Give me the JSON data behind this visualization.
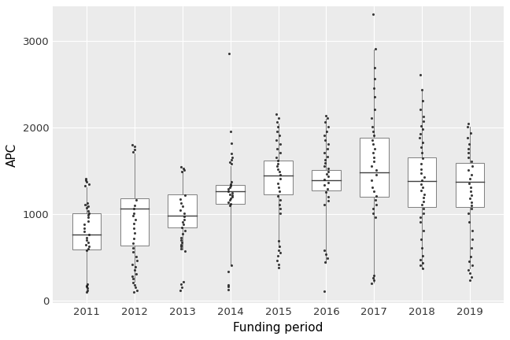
{
  "years": [
    2011,
    2012,
    2013,
    2014,
    2015,
    2016,
    2017,
    2018,
    2019
  ],
  "box_stats": {
    "2011": {
      "q1": 590,
      "median": 760,
      "q3": 1010,
      "whislo": 180,
      "whishi": 1310
    },
    "2012": {
      "q1": 640,
      "median": 1060,
      "q3": 1185,
      "whislo": 220,
      "whishi": 1700
    },
    "2013": {
      "q1": 845,
      "median": 980,
      "q3": 1230,
      "whislo": 590,
      "whishi": 1490
    },
    "2014": {
      "q1": 1115,
      "median": 1260,
      "q3": 1340,
      "whislo": 420,
      "whishi": 1560
    },
    "2015": {
      "q1": 1230,
      "median": 1450,
      "q3": 1620,
      "whislo": 620,
      "whishi": 2050
    },
    "2016": {
      "q1": 1270,
      "median": 1390,
      "q3": 1510,
      "whislo": 440,
      "whishi": 2100
    },
    "2017": {
      "q1": 1200,
      "median": 1480,
      "q3": 1880,
      "whislo": 210,
      "whishi": 2900
    },
    "2018": {
      "q1": 1080,
      "median": 1380,
      "q3": 1660,
      "whislo": 380,
      "whishi": 2420
    },
    "2019": {
      "q1": 1080,
      "median": 1375,
      "q3": 1590,
      "whislo": 370,
      "whishi": 2010
    }
  },
  "outliers": {
    "2011": [
      100,
      130,
      155,
      175,
      190,
      1340,
      1370,
      1395,
      1410
    ],
    "2012": [
      100,
      130,
      185,
      215,
      250,
      270,
      310,
      340,
      390,
      420,
      450,
      490,
      530,
      1710,
      1740,
      1760,
      1790
    ],
    "2013": [
      120,
      160,
      200,
      230,
      1500,
      1520,
      1540
    ],
    "2014": [
      130,
      165,
      185,
      340,
      400,
      1580,
      1600,
      1640,
      1700,
      1800,
      1960,
      2850
    ],
    "2015": [
      380,
      420,
      460,
      510,
      550,
      580,
      2060,
      2100,
      2150
    ],
    "2016": [
      105,
      440,
      480,
      2110,
      2130
    ],
    "2017": [
      200,
      235,
      265,
      295,
      2910,
      2950,
      3300
    ],
    "2018": [
      370,
      400,
      430,
      2430,
      2600
    ],
    "2019": [
      230,
      260,
      300,
      350,
      2020,
      2040
    ]
  },
  "jitter_outliers": {
    "2011": [
      100,
      120,
      145,
      160,
      175,
      190,
      580,
      600,
      630,
      650,
      670,
      700,
      730,
      760,
      800,
      840,
      880,
      920,
      960,
      990,
      1010,
      1040,
      1070,
      1090,
      1110,
      1130,
      1330,
      1350,
      1370,
      1395,
      1410
    ],
    "2012": [
      100,
      120,
      155,
      185,
      210,
      250,
      280,
      310,
      350,
      390,
      420,
      460,
      510,
      560,
      610,
      660,
      720,
      780,
      840,
      890,
      940,
      980,
      1010,
      1060,
      1100,
      1160,
      1720,
      1750,
      1780,
      1800
    ],
    "2013": [
      120,
      155,
      190,
      220,
      570,
      600,
      625,
      650,
      675,
      700,
      730,
      770,
      810,
      850,
      880,
      910,
      940,
      970,
      1010,
      1050,
      1090,
      1130,
      1170,
      1220,
      1490,
      1510,
      1530,
      1550
    ],
    "2014": [
      130,
      160,
      180,
      340,
      405,
      1100,
      1120,
      1140,
      1160,
      1180,
      1200,
      1215,
      1230,
      1245,
      1265,
      1290,
      1310,
      1330,
      1350,
      1370,
      1580,
      1600,
      1630,
      1660,
      1700,
      1820,
      1960,
      2860
    ],
    "2015": [
      380,
      420,
      465,
      515,
      555,
      585,
      625,
      690,
      1010,
      1060,
      1110,
      1160,
      1210,
      1260,
      1310,
      1360,
      1410,
      1460,
      1490,
      1520,
      1555,
      1585,
      1620,
      1660,
      1710,
      1760,
      1810,
      1860,
      1910,
      1960,
      2010,
      2065,
      2110,
      2155
    ],
    "2016": [
      105,
      445,
      490,
      535,
      580,
      1110,
      1155,
      1205,
      1255,
      1295,
      1335,
      1365,
      1405,
      1435,
      1465,
      1490,
      1525,
      1555,
      1595,
      1625,
      1665,
      1710,
      1755,
      1810,
      1860,
      1910,
      1960,
      2010,
      2065,
      2115,
      2135
    ],
    "2017": [
      200,
      235,
      265,
      295,
      960,
      1010,
      1060,
      1110,
      1160,
      1210,
      1260,
      1310,
      1390,
      1460,
      1510,
      1560,
      1610,
      1660,
      1710,
      1760,
      1810,
      1860,
      1910,
      1960,
      2010,
      2110,
      2210,
      2360,
      2460,
      2565,
      2690,
      2915,
      3310
    ],
    "2018": [
      375,
      405,
      435,
      475,
      515,
      610,
      710,
      810,
      910,
      960,
      1010,
      1060,
      1110,
      1150,
      1190,
      1230,
      1270,
      1310,
      1350,
      1390,
      1430,
      1470,
      1520,
      1580,
      1650,
      1710,
      1770,
      1830,
      1880,
      1930,
      1980,
      2020,
      2070,
      2130,
      2210,
      2310,
      2435,
      2610
    ],
    "2019": [
      235,
      275,
      315,
      355,
      405,
      455,
      510,
      610,
      710,
      810,
      910,
      1010,
      1060,
      1100,
      1140,
      1180,
      1220,
      1260,
      1310,
      1360,
      1410,
      1460,
      1510,
      1560,
      1610,
      1660,
      1710,
      1760,
      1810,
      1880,
      1940,
      2010,
      2045
    ]
  },
  "xlabel": "Funding period",
  "ylabel": "APC",
  "ylim": [
    -30,
    3400
  ],
  "yticks": [
    0,
    1000,
    2000,
    3000
  ],
  "panel_bg": "#ebebeb",
  "plot_bg": "#ffffff",
  "grid_color": "#ffffff",
  "box_fill": "#ffffff",
  "box_edge": "#7f7f7f",
  "median_color": "#404040",
  "whisker_color": "#7f7f7f",
  "outlier_color": "#1a1a1a",
  "box_width": 0.6
}
